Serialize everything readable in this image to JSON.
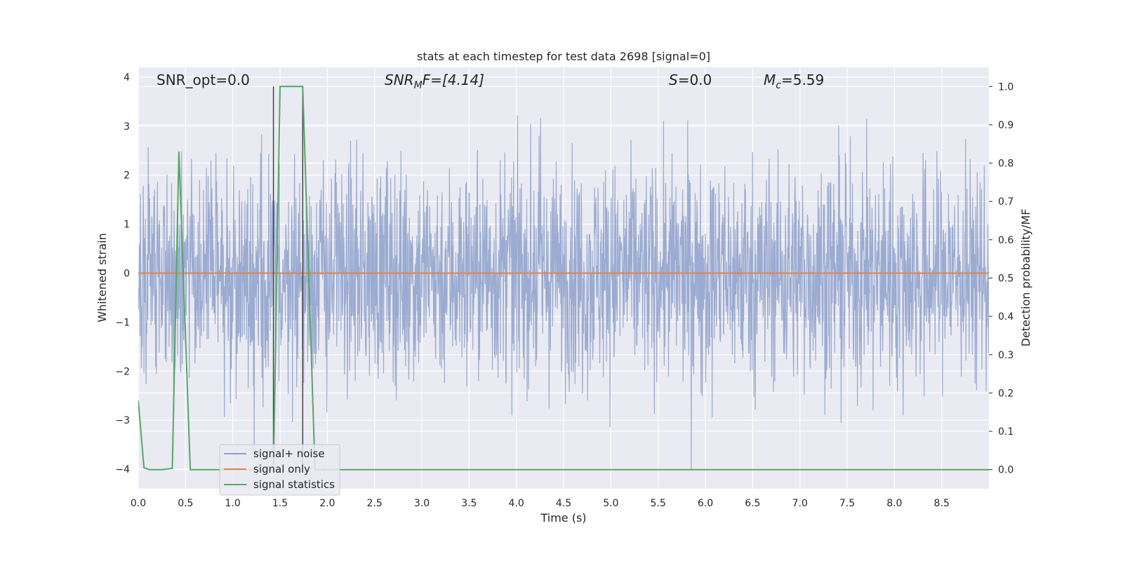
{
  "chart_data": {
    "type": "line",
    "title": "stats at each timestep for test data 2698 [signal=0]",
    "xlabel": "Time (s)",
    "ylabel": "Whitened strain",
    "y2label": "Detection probability/MF",
    "xlim": [
      0,
      9.0
    ],
    "ylim": [
      -4.4,
      4.2
    ],
    "y2lim": [
      -0.05,
      1.05
    ],
    "xticks": [
      "0.0",
      "0.5",
      "1.0",
      "1.5",
      "2.0",
      "2.5",
      "3.0",
      "3.5",
      "4.0",
      "4.5",
      "5.0",
      "5.5",
      "6.0",
      "6.5",
      "7.0",
      "7.5",
      "8.0",
      "8.5"
    ],
    "yticks": [
      "4",
      "3",
      "2",
      "1",
      "0",
      "−1",
      "−2",
      "−3",
      "−4"
    ],
    "y2ticks": [
      "1.0",
      "0.9",
      "0.8",
      "0.7",
      "0.6",
      "0.5",
      "0.4",
      "0.3",
      "0.2",
      "0.1",
      "0.0"
    ],
    "grid": true,
    "annotations": {
      "snr_opt": "SNR_opt=0.0",
      "snr_mf_label": "SNR",
      "snr_mf_sub": "M",
      "snr_mf_rest": "F=[4.14]",
      "s_label": "S",
      "s_value": "=0.0",
      "mc_label": "M",
      "mc_sub": "c",
      "mc_value": "=5.59"
    },
    "vertical_lines_x": [
      1.43,
      1.74
    ],
    "legend": {
      "position": "lower-left",
      "entries": [
        "signal+ noise",
        "signal only",
        "signal statistics"
      ]
    },
    "series": [
      {
        "name": "signal+ noise",
        "axis": "left",
        "color": "#8da0cb",
        "description": "whitened noisy strain, roughly within ±2.5 with spikes up to about ±4",
        "y_range": [
          -4.0,
          3.6
        ]
      },
      {
        "name": "signal only",
        "axis": "left",
        "color": "#dd8452",
        "x": [
          0,
          9.0
        ],
        "y": [
          0,
          0
        ]
      },
      {
        "name": "signal statistics",
        "axis": "right",
        "color": "#55a868",
        "x": [
          0.0,
          0.06,
          0.12,
          0.25,
          0.36,
          0.43,
          0.55,
          0.66,
          1.0,
          1.4,
          1.43,
          1.5,
          1.74,
          1.87,
          2.0,
          9.0
        ],
        "y": [
          0.18,
          0.005,
          0.0,
          0.0,
          0.003,
          0.83,
          0.0,
          0.0,
          0.0,
          0.0,
          0.0,
          1.0,
          1.0,
          0.0,
          0.0,
          0.0
        ]
      }
    ]
  },
  "colors": {
    "plot_bg": "#eaeaf2",
    "grid": "#ffffff",
    "noise": "#8da0cb",
    "signal": "#dd8452",
    "stats": "#55a868",
    "vline": "#444444"
  }
}
